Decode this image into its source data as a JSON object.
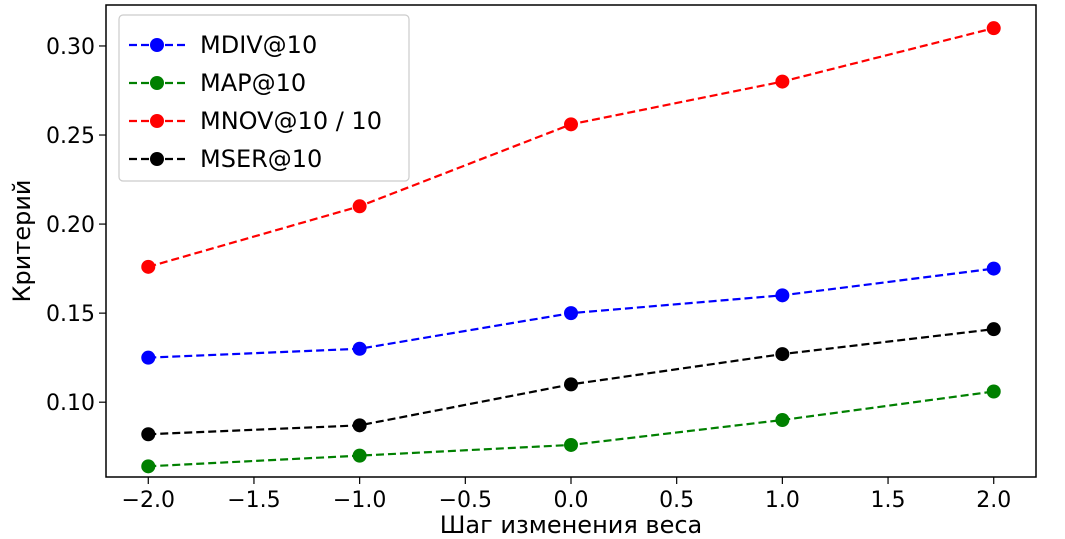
{
  "chart_data": {
    "type": "line",
    "title": "",
    "xlabel": "Шаг изменения веса",
    "ylabel": "Критерий",
    "x": [
      -2.0,
      -1.0,
      0.0,
      1.0,
      2.0
    ],
    "xlim": [
      -2.2,
      2.2
    ],
    "ylim": [
      0.058,
      0.323
    ],
    "xticks": [
      -2.0,
      -1.5,
      -1.0,
      -0.5,
      0.0,
      0.5,
      1.0,
      1.5,
      2.0
    ],
    "xtick_labels": [
      "−2.0",
      "−1.5",
      "−1.0",
      "−0.5",
      "0.0",
      "0.5",
      "1.0",
      "1.5",
      "2.0"
    ],
    "yticks": [
      0.1,
      0.15,
      0.2,
      0.25,
      0.3
    ],
    "ytick_labels": [
      "0.10",
      "0.15",
      "0.20",
      "0.25",
      "0.30"
    ],
    "grid": false,
    "legend_position": "top-left",
    "series": [
      {
        "name": "MDIV@10",
        "color": "#0000ff",
        "values": [
          0.125,
          0.13,
          0.15,
          0.16,
          0.175
        ]
      },
      {
        "name": "MAP@10",
        "color": "#008000",
        "values": [
          0.064,
          0.07,
          0.076,
          0.09,
          0.106
        ]
      },
      {
        "name": "MNOV@10 / 10",
        "color": "#ff0000",
        "values": [
          0.176,
          0.21,
          0.256,
          0.28,
          0.31
        ]
      },
      {
        "name": "MSER@10",
        "color": "#000000",
        "values": [
          0.082,
          0.087,
          0.11,
          0.127,
          0.141
        ]
      }
    ]
  }
}
